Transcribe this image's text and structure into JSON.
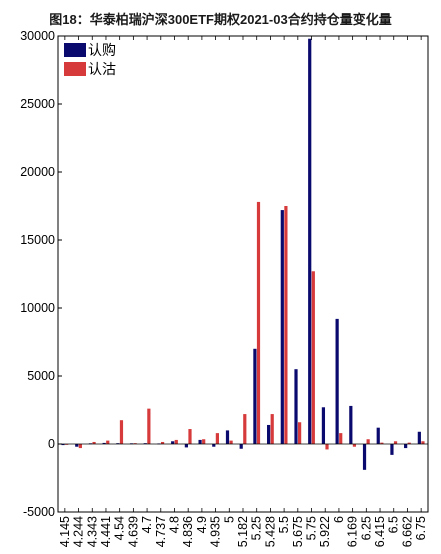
{
  "chart_data": {
    "type": "bar",
    "title": "图18：华泰柏瑞沪深300ETF期权2021-03合约持仓量变化量",
    "xlabel": "",
    "ylabel": "",
    "ylim": [
      -5000,
      30000
    ],
    "yticks": [
      -5000,
      0,
      5000,
      10000,
      15000,
      20000,
      25000,
      30000
    ],
    "legend": "top-left",
    "grid": false,
    "categories": [
      "4.145",
      "4.244",
      "4.343",
      "4.441",
      "4.54",
      "4.639",
      "4.7",
      "4.737",
      "4.8",
      "4.836",
      "4.9",
      "4.935",
      "5",
      "5.182",
      "5.25",
      "5.428",
      "5.5",
      "5.675",
      "5.75",
      "5.922",
      "6",
      "6.169",
      "6.25",
      "6.415",
      "6.5",
      "6.662",
      "6.75"
    ],
    "series": [
      {
        "name": "认购",
        "color": "#0a0a6e",
        "values": [
          -80,
          -200,
          50,
          80,
          60,
          50,
          60,
          40,
          200,
          -250,
          300,
          -200,
          1000,
          -350,
          7000,
          1400,
          17200,
          5500,
          29800,
          2700,
          9200,
          2800,
          -1900,
          1200,
          -800,
          -300,
          900
        ]
      },
      {
        "name": "认沽",
        "color": "#d63a3a",
        "values": [
          -50,
          -300,
          150,
          250,
          1750,
          60,
          2600,
          150,
          300,
          1100,
          350,
          800,
          250,
          2200,
          17800,
          2200,
          17500,
          1600,
          12700,
          -400,
          800,
          -200,
          350,
          100,
          200,
          100,
          200
        ]
      }
    ]
  }
}
